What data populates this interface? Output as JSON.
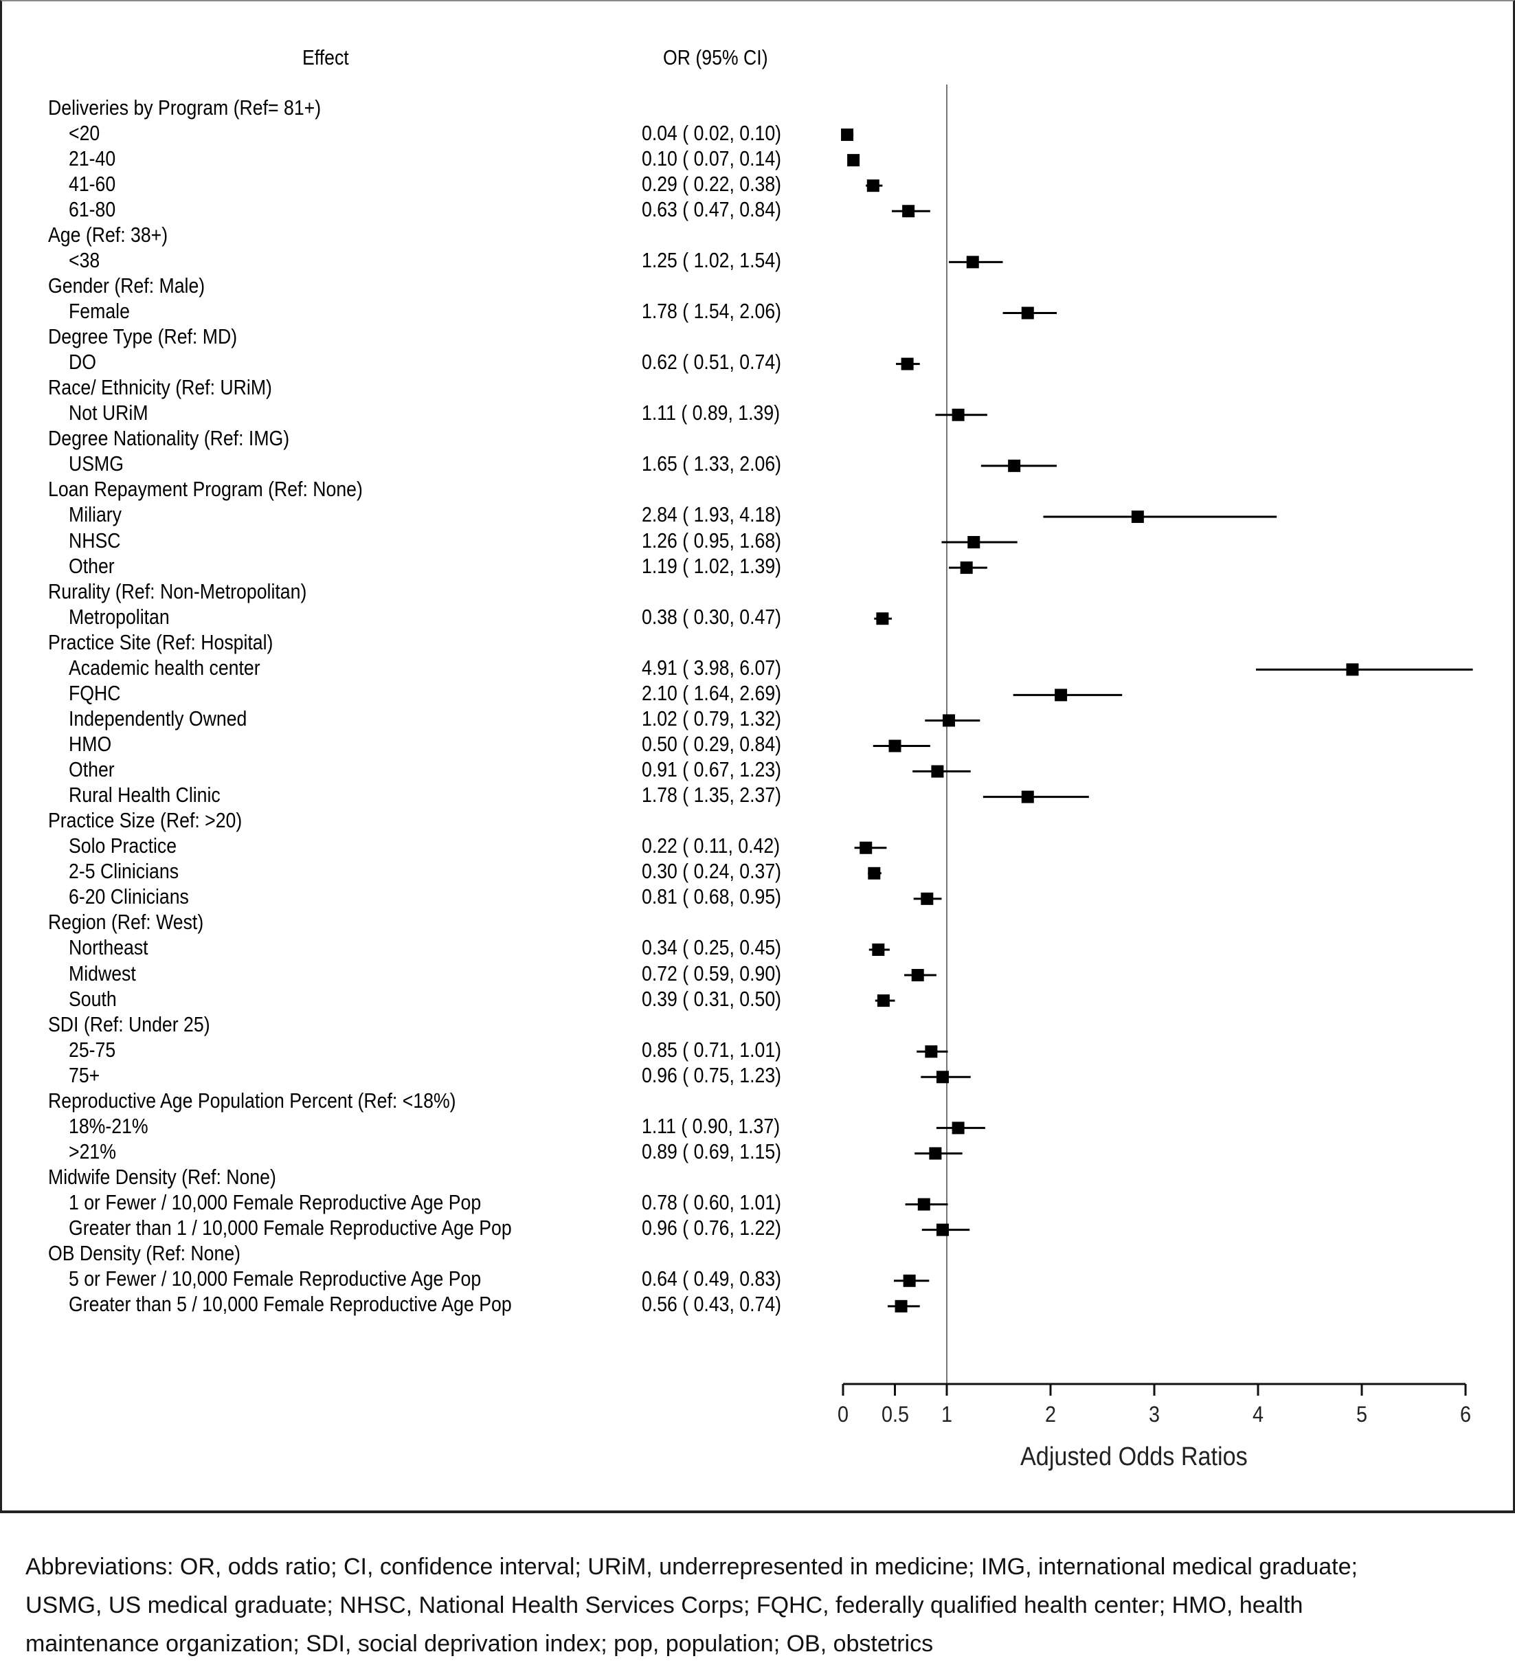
{
  "chart_data": {
    "type": "forest",
    "title": "",
    "columns": {
      "effect_header": "Effect",
      "or_header": "OR (95% CI)"
    },
    "xlabel": "Adjusted Odds Ratios",
    "xlim": [
      0,
      6
    ],
    "xticks": [
      0,
      0.5,
      1,
      2,
      3,
      4,
      5,
      6
    ],
    "xtick_labels": [
      "0",
      "0.5",
      "1",
      "2",
      "3",
      "4",
      "5",
      "6"
    ],
    "reference_line": 1,
    "rows": [
      {
        "label": "Deliveries by Program (Ref= 81+)",
        "group": true
      },
      {
        "label": "<20",
        "or_text": "0.04 ( 0.02, 0.10)",
        "or": 0.04,
        "lo": 0.02,
        "hi": 0.1
      },
      {
        "label": "21-40",
        "or_text": "0.10 ( 0.07, 0.14)",
        "or": 0.1,
        "lo": 0.07,
        "hi": 0.14
      },
      {
        "label": "41-60",
        "or_text": "0.29 ( 0.22, 0.38)",
        "or": 0.29,
        "lo": 0.22,
        "hi": 0.38
      },
      {
        "label": "61-80",
        "or_text": "0.63 ( 0.47, 0.84)",
        "or": 0.63,
        "lo": 0.47,
        "hi": 0.84
      },
      {
        "label": "Age (Ref: 38+)",
        "group": true
      },
      {
        "label": "<38",
        "or_text": "1.25 ( 1.02, 1.54)",
        "or": 1.25,
        "lo": 1.02,
        "hi": 1.54
      },
      {
        "label": "Gender (Ref: Male)",
        "group": true
      },
      {
        "label": "Female",
        "or_text": "1.78 ( 1.54, 2.06)",
        "or": 1.78,
        "lo": 1.54,
        "hi": 2.06
      },
      {
        "label": "Degree Type (Ref: MD)",
        "group": true
      },
      {
        "label": "DO",
        "or_text": "0.62 ( 0.51, 0.74)",
        "or": 0.62,
        "lo": 0.51,
        "hi": 0.74
      },
      {
        "label": "Race/ Ethnicity (Ref: URiM)",
        "group": true
      },
      {
        "label": "Not URiM",
        "or_text": "1.11 ( 0.89, 1.39)",
        "or": 1.11,
        "lo": 0.89,
        "hi": 1.39
      },
      {
        "label": "Degree Nationality (Ref: IMG)",
        "group": true
      },
      {
        "label": "USMG",
        "or_text": "1.65 ( 1.33, 2.06)",
        "or": 1.65,
        "lo": 1.33,
        "hi": 2.06
      },
      {
        "label": "Loan Repayment Program (Ref: None)",
        "group": true
      },
      {
        "label": "Miliary",
        "or_text": "2.84 ( 1.93, 4.18)",
        "or": 2.84,
        "lo": 1.93,
        "hi": 4.18
      },
      {
        "label": "NHSC",
        "or_text": "1.26 ( 0.95, 1.68)",
        "or": 1.26,
        "lo": 0.95,
        "hi": 1.68
      },
      {
        "label": "Other",
        "or_text": "1.19 ( 1.02, 1.39)",
        "or": 1.19,
        "lo": 1.02,
        "hi": 1.39
      },
      {
        "label": "Rurality (Ref: Non-Metropolitan)",
        "group": true
      },
      {
        "label": "Metropolitan",
        "or_text": "0.38 ( 0.30, 0.47)",
        "or": 0.38,
        "lo": 0.3,
        "hi": 0.47
      },
      {
        "label": "Practice Site (Ref: Hospital)",
        "group": true
      },
      {
        "label": "Academic health center",
        "or_text": "4.91 ( 3.98, 6.07)",
        "or": 4.91,
        "lo": 3.98,
        "hi": 6.07
      },
      {
        "label": "FQHC",
        "or_text": "2.10 ( 1.64, 2.69)",
        "or": 2.1,
        "lo": 1.64,
        "hi": 2.69
      },
      {
        "label": "Independently Owned",
        "or_text": "1.02 ( 0.79, 1.32)",
        "or": 1.02,
        "lo": 0.79,
        "hi": 1.32
      },
      {
        "label": "HMO",
        "or_text": "0.50 ( 0.29, 0.84)",
        "or": 0.5,
        "lo": 0.29,
        "hi": 0.84
      },
      {
        "label": "Other",
        "or_text": "0.91 ( 0.67, 1.23)",
        "or": 0.91,
        "lo": 0.67,
        "hi": 1.23
      },
      {
        "label": "Rural Health Clinic",
        "or_text": "1.78 ( 1.35, 2.37)",
        "or": 1.78,
        "lo": 1.35,
        "hi": 2.37
      },
      {
        "label": "Practice Size (Ref: >20)",
        "group": true
      },
      {
        "label": "Solo Practice",
        "or_text": "0.22 ( 0.11, 0.42)",
        "or": 0.22,
        "lo": 0.11,
        "hi": 0.42
      },
      {
        "label": "2-5 Clinicians",
        "or_text": "0.30 ( 0.24, 0.37)",
        "or": 0.3,
        "lo": 0.24,
        "hi": 0.37
      },
      {
        "label": "6-20 Clinicians",
        "or_text": "0.81 ( 0.68, 0.95)",
        "or": 0.81,
        "lo": 0.68,
        "hi": 0.95
      },
      {
        "label": "Region (Ref: West)",
        "group": true
      },
      {
        "label": "Northeast",
        "or_text": "0.34 ( 0.25, 0.45)",
        "or": 0.34,
        "lo": 0.25,
        "hi": 0.45
      },
      {
        "label": "Midwest",
        "or_text": "0.72 ( 0.59, 0.90)",
        "or": 0.72,
        "lo": 0.59,
        "hi": 0.9
      },
      {
        "label": "South",
        "or_text": "0.39 ( 0.31, 0.50)",
        "or": 0.39,
        "lo": 0.31,
        "hi": 0.5
      },
      {
        "label": "SDI (Ref: Under 25)",
        "group": true
      },
      {
        "label": "25-75",
        "or_text": "0.85 ( 0.71, 1.01)",
        "or": 0.85,
        "lo": 0.71,
        "hi": 1.01
      },
      {
        "label": "75+",
        "or_text": "0.96 ( 0.75, 1.23)",
        "or": 0.96,
        "lo": 0.75,
        "hi": 1.23
      },
      {
        "label": "Reproductive Age Population Percent (Ref: <18%)",
        "group": true
      },
      {
        "label": "18%-21%",
        "or_text": "1.11 ( 0.90, 1.37)",
        "or": 1.11,
        "lo": 0.9,
        "hi": 1.37
      },
      {
        "label": ">21%",
        "or_text": "0.89 ( 0.69, 1.15)",
        "or": 0.89,
        "lo": 0.69,
        "hi": 1.15
      },
      {
        "label": "Midwife Density (Ref: None)",
        "group": true
      },
      {
        "label": "1 or Fewer / 10,000 Female Reproductive Age Pop",
        "or_text": "0.78 ( 0.60, 1.01)",
        "or": 0.78,
        "lo": 0.6,
        "hi": 1.01
      },
      {
        "label": "Greater than 1 / 10,000 Female Reproductive Age Pop",
        "or_text": "0.96 ( 0.76, 1.22)",
        "or": 0.96,
        "lo": 0.76,
        "hi": 1.22
      },
      {
        "label": "OB Density (Ref: None)",
        "group": true
      },
      {
        "label": "5 or Fewer / 10,000 Female Reproductive Age Pop",
        "or_text": "0.64 ( 0.49, 0.83)",
        "or": 0.64,
        "lo": 0.49,
        "hi": 0.83
      },
      {
        "label": "Greater than 5 / 10,000 Female Reproductive Age Pop",
        "or_text": "0.56 ( 0.43, 0.74)",
        "or": 0.56,
        "lo": 0.43,
        "hi": 0.74
      }
    ]
  },
  "caption": {
    "lines": [
      "Abbreviations: OR, odds ratio; CI, confidence interval; URiM, underrepresented in medicine; IMG, international medical graduate;",
      "USMG, US medical graduate; NHSC, National Health Services Corps; FQHC, federally qualified health center; HMO, health",
      "maintenance organization; SDI, social deprivation index; pop, population; OB, obstetrics"
    ]
  },
  "colors": {
    "marker": "#000000",
    "reference_line": "#777777",
    "axis": "#111111",
    "frame": "#222222"
  }
}
